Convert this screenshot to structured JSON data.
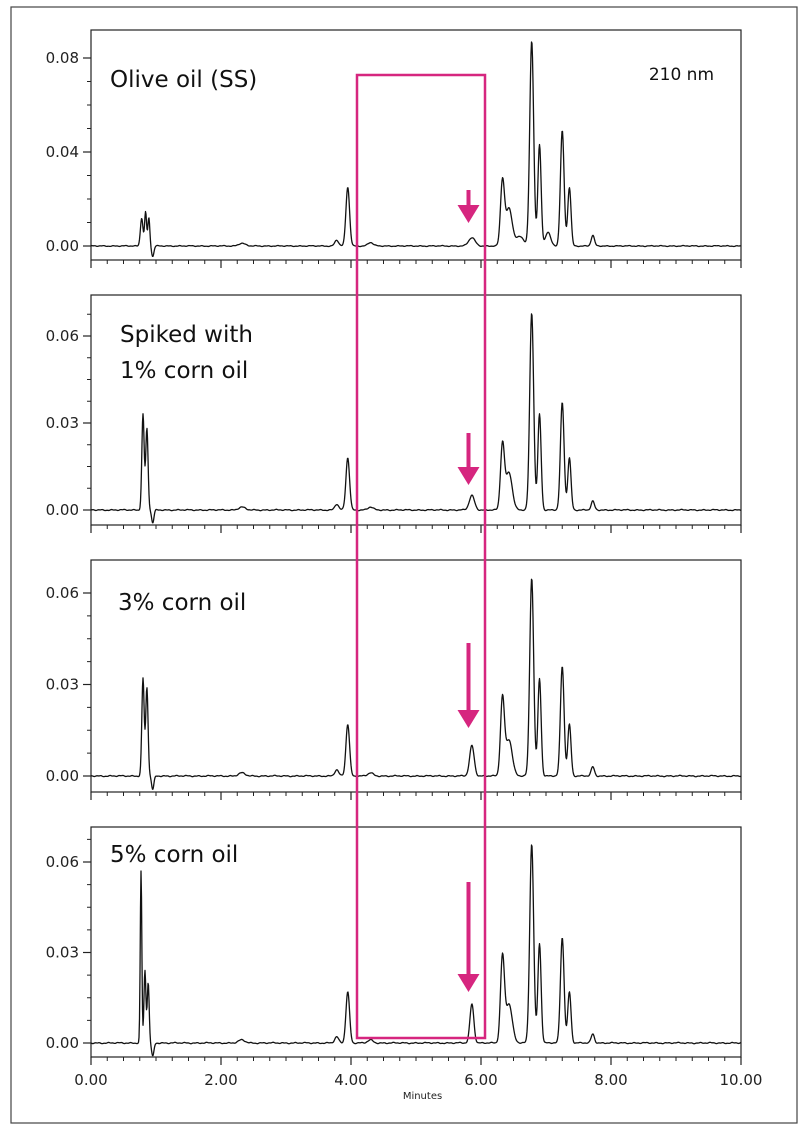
{
  "chart_data": [
    {
      "type": "line",
      "title": "",
      "labels": [
        "Olive oil (SS)"
      ],
      "annotation": "210 nm",
      "xlabel": "",
      "ylabel": "",
      "xlim": [
        0,
        10
      ],
      "ylim": [
        -0.006,
        0.092
      ],
      "yticks": [
        "0.00",
        "0.04",
        "0.08"
      ],
      "highlight_window": [
        4.2,
        6.2
      ],
      "arrow_x": 5.9,
      "peaks": [
        {
          "x": 0.78,
          "h": 0.012,
          "w": 0.02
        },
        {
          "x": 0.84,
          "h": 0.0145,
          "w": 0.015
        },
        {
          "x": 0.89,
          "h": 0.012,
          "w": 0.015
        },
        {
          "x": 2.32,
          "h": 0.0012,
          "w": 0.05
        },
        {
          "x": 3.78,
          "h": 0.0025,
          "w": 0.03
        },
        {
          "x": 3.95,
          "h": 0.025,
          "w": 0.028
        },
        {
          "x": 4.3,
          "h": 0.0015,
          "w": 0.04
        },
        {
          "x": 5.86,
          "h": 0.0035,
          "w": 0.05
        },
        {
          "x": 6.33,
          "h": 0.027,
          "w": 0.03
        },
        {
          "x": 6.43,
          "h": 0.016,
          "w": 0.05
        },
        {
          "x": 6.6,
          "h": 0.004,
          "w": 0.06
        },
        {
          "x": 6.78,
          "h": 0.087,
          "w": 0.03
        },
        {
          "x": 6.9,
          "h": 0.043,
          "w": 0.025
        },
        {
          "x": 7.03,
          "h": 0.006,
          "w": 0.04
        },
        {
          "x": 7.25,
          "h": 0.049,
          "w": 0.028
        },
        {
          "x": 7.36,
          "h": 0.025,
          "w": 0.025
        },
        {
          "x": 7.72,
          "h": 0.0045,
          "w": 0.025
        }
      ]
    },
    {
      "type": "line",
      "title": "",
      "labels": [
        "Spiked with",
        "1% corn oil"
      ],
      "xlabel": "",
      "ylabel": "",
      "xlim": [
        0,
        10
      ],
      "ylim": [
        -0.004,
        0.074
      ],
      "yticks": [
        "0.00",
        "0.03",
        "0.06"
      ],
      "arrow_x": 5.9,
      "peaks": [
        {
          "x": 0.8,
          "h": 0.033,
          "w": 0.018
        },
        {
          "x": 0.86,
          "h": 0.028,
          "w": 0.018
        },
        {
          "x": 2.32,
          "h": 0.001,
          "w": 0.05
        },
        {
          "x": 3.78,
          "h": 0.002,
          "w": 0.03
        },
        {
          "x": 3.95,
          "h": 0.018,
          "w": 0.028
        },
        {
          "x": 4.3,
          "h": 0.001,
          "w": 0.04
        },
        {
          "x": 5.86,
          "h": 0.005,
          "w": 0.04
        },
        {
          "x": 6.33,
          "h": 0.022,
          "w": 0.03
        },
        {
          "x": 6.43,
          "h": 0.013,
          "w": 0.05
        },
        {
          "x": 6.78,
          "h": 0.068,
          "w": 0.03
        },
        {
          "x": 6.9,
          "h": 0.033,
          "w": 0.025
        },
        {
          "x": 7.25,
          "h": 0.037,
          "w": 0.028
        },
        {
          "x": 7.36,
          "h": 0.018,
          "w": 0.025
        },
        {
          "x": 7.72,
          "h": 0.003,
          "w": 0.025
        }
      ]
    },
    {
      "type": "line",
      "title": "",
      "labels": [
        "3% corn oil"
      ],
      "xlabel": "",
      "ylabel": "",
      "xlim": [
        0,
        10
      ],
      "ylim": [
        -0.005,
        0.068
      ],
      "yticks": [
        "0.00",
        "0.03",
        "0.06"
      ],
      "arrow_x": 5.9,
      "peaks": [
        {
          "x": 0.8,
          "h": 0.032,
          "w": 0.018
        },
        {
          "x": 0.86,
          "h": 0.029,
          "w": 0.018
        },
        {
          "x": 2.32,
          "h": 0.001,
          "w": 0.05
        },
        {
          "x": 3.78,
          "h": 0.002,
          "w": 0.03
        },
        {
          "x": 3.95,
          "h": 0.017,
          "w": 0.028
        },
        {
          "x": 4.3,
          "h": 0.001,
          "w": 0.04
        },
        {
          "x": 5.86,
          "h": 0.01,
          "w": 0.035
        },
        {
          "x": 6.33,
          "h": 0.025,
          "w": 0.03
        },
        {
          "x": 6.43,
          "h": 0.012,
          "w": 0.05
        },
        {
          "x": 6.78,
          "h": 0.065,
          "w": 0.03
        },
        {
          "x": 6.9,
          "h": 0.032,
          "w": 0.025
        },
        {
          "x": 7.25,
          "h": 0.036,
          "w": 0.028
        },
        {
          "x": 7.36,
          "h": 0.017,
          "w": 0.025
        },
        {
          "x": 7.72,
          "h": 0.003,
          "w": 0.025
        }
      ]
    },
    {
      "type": "line",
      "title": "",
      "labels": [
        "5% corn oil"
      ],
      "xlabel": "Minutes",
      "ylabel": "",
      "xlim": [
        0,
        10
      ],
      "ylim": [
        -0.005,
        0.07
      ],
      "yticks": [
        "0.00",
        "0.03",
        "0.06"
      ],
      "xticks": [
        "0.00",
        "2.00",
        "4.00",
        "6.00",
        "8.00",
        "10.00"
      ],
      "arrow_x": 5.9,
      "peaks": [
        {
          "x": 0.77,
          "h": 0.057,
          "w": 0.012
        },
        {
          "x": 0.83,
          "h": 0.024,
          "w": 0.015
        },
        {
          "x": 0.88,
          "h": 0.02,
          "w": 0.015
        },
        {
          "x": 2.32,
          "h": 0.001,
          "w": 0.05
        },
        {
          "x": 3.78,
          "h": 0.002,
          "w": 0.03
        },
        {
          "x": 3.95,
          "h": 0.017,
          "w": 0.028
        },
        {
          "x": 4.3,
          "h": 0.001,
          "w": 0.04
        },
        {
          "x": 5.86,
          "h": 0.013,
          "w": 0.03
        },
        {
          "x": 6.33,
          "h": 0.028,
          "w": 0.03
        },
        {
          "x": 6.43,
          "h": 0.013,
          "w": 0.05
        },
        {
          "x": 6.78,
          "h": 0.066,
          "w": 0.03
        },
        {
          "x": 6.9,
          "h": 0.033,
          "w": 0.025
        },
        {
          "x": 7.25,
          "h": 0.035,
          "w": 0.028
        },
        {
          "x": 7.36,
          "h": 0.017,
          "w": 0.025
        },
        {
          "x": 7.72,
          "h": 0.003,
          "w": 0.025
        }
      ]
    }
  ],
  "colors": {
    "highlight": "#d6267f",
    "trace": "#111111",
    "frame": "#222222"
  }
}
